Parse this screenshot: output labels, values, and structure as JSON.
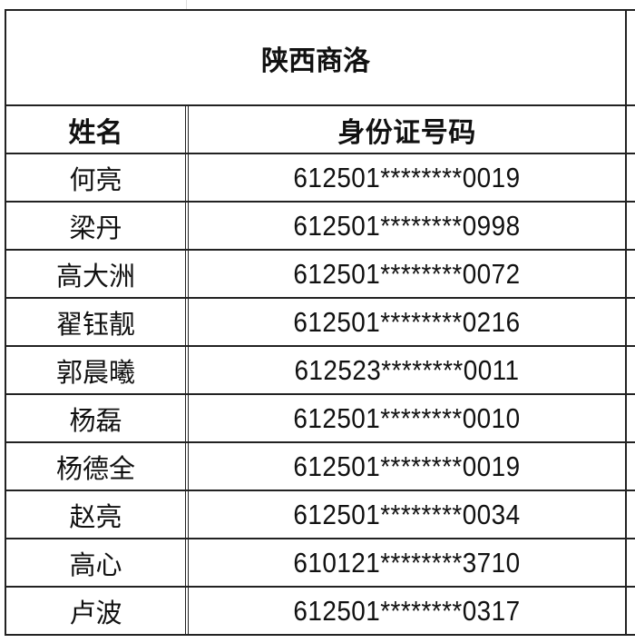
{
  "title": "陕西商洛",
  "headers": {
    "name": "姓名",
    "id": "身份证号码"
  },
  "rows": [
    {
      "name": "何亮",
      "id": "612501********0019"
    },
    {
      "name": "梁丹",
      "id": "612501********0998"
    },
    {
      "name": "高大洲",
      "id": "612501********0072"
    },
    {
      "name": "翟钰靓",
      "id": "612501********0216"
    },
    {
      "name": "郭晨曦",
      "id": "612523********0011"
    },
    {
      "name": "杨磊",
      "id": "612501********0010"
    },
    {
      "name": "杨德全",
      "id": "612501********0019"
    },
    {
      "name": "赵亮",
      "id": "612501********0034"
    },
    {
      "name": "高心",
      "id": "610121********3710"
    },
    {
      "name": "卢波",
      "id": "612501********0317"
    }
  ]
}
